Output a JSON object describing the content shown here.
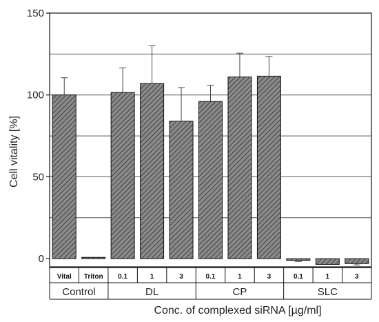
{
  "chart_data": {
    "type": "bar",
    "title": "",
    "ylabel": "Cell vitality [%]",
    "xlabel": "Conc. of complexed siRNA [µg/ml]",
    "ylim": [
      -5,
      150
    ],
    "yticks": [
      0,
      50,
      100,
      150
    ],
    "gridlines": [
      25,
      50,
      75,
      100,
      125
    ],
    "grid": true,
    "groups": [
      {
        "name": "Control",
        "categories": [
          "Vital",
          "Triton"
        ]
      },
      {
        "name": "DL",
        "categories": [
          "0.1",
          "1",
          "3"
        ]
      },
      {
        "name": "CP",
        "categories": [
          "0.1",
          "1",
          "3"
        ]
      },
      {
        "name": "SLC",
        "categories": [
          "0.1",
          "1",
          "3"
        ]
      }
    ],
    "values": [
      100,
      0.8,
      101.5,
      107,
      84,
      96,
      111,
      111.5,
      -1,
      -3.5,
      -3
    ],
    "errors": [
      10.5,
      0,
      15,
      23,
      20.5,
      10,
      14.5,
      12,
      0.8,
      0,
      0.8
    ],
    "bar_color": "#6b6b6b",
    "hatch": "diagonal"
  }
}
